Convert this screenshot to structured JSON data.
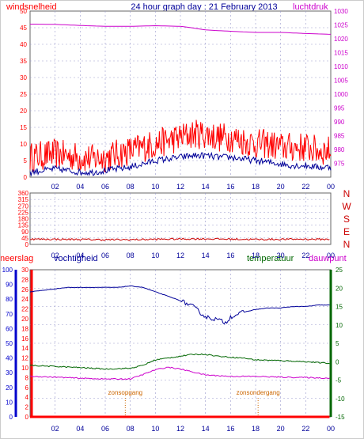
{
  "title": "24 hour graph day : 21 February 2013",
  "colors": {
    "wind": "#ff0000",
    "gust": "#ff0000",
    "avg_wind": "#000099",
    "pressure": "#cc00cc",
    "direction": "#cc0000",
    "rain": "#ff0000",
    "humidity": "#000099",
    "temperature": "#006600",
    "dewpoint": "#cc00cc",
    "sun": "#cc6600",
    "grid": "#9999cc",
    "frame": "#666666"
  },
  "chart_data": [
    {
      "type": "line",
      "name": "wind-pressure",
      "labels": {
        "left": "windsnelheid",
        "right": "luchtdruk"
      },
      "x_ticks": [
        "02",
        "04",
        "06",
        "08",
        "10",
        "12",
        "14",
        "16",
        "18",
        "20",
        "22",
        "00"
      ],
      "y_left": {
        "min": 0,
        "max": 50,
        "ticks": [
          0,
          5,
          10,
          15,
          20,
          25,
          30,
          35,
          40,
          45,
          50
        ]
      },
      "y_right": {
        "min": 970,
        "max": 1030,
        "ticks": [
          975,
          980,
          985,
          990,
          995,
          1000,
          1005,
          1010,
          1015,
          1020,
          1025,
          1030
        ]
      },
      "series": [
        {
          "key": "gust",
          "axis": "left",
          "hours": [
            0,
            1,
            2,
            3,
            4,
            5,
            6,
            7,
            8,
            9,
            10,
            11,
            12,
            13,
            14,
            15,
            16,
            17,
            18,
            19,
            20,
            21,
            22,
            23,
            24
          ],
          "values": [
            6,
            6.5,
            7,
            6.5,
            6,
            5.5,
            6,
            7,
            8,
            9,
            10,
            11,
            12,
            13,
            13,
            12,
            12,
            11,
            10,
            10,
            9,
            9,
            9,
            8,
            8
          ],
          "range": 3.5
        },
        {
          "key": "avg_wind",
          "axis": "left",
          "hours": [
            0,
            1,
            2,
            3,
            4,
            5,
            6,
            7,
            8,
            9,
            10,
            11,
            12,
            13,
            14,
            15,
            16,
            17,
            18,
            19,
            20,
            21,
            22,
            23,
            24
          ],
          "values": [
            1.5,
            2,
            2.5,
            2,
            1.5,
            1.5,
            2,
            2.5,
            3,
            4,
            5,
            5.5,
            6,
            6.5,
            6.5,
            6,
            6,
            5.5,
            5,
            4.5,
            4,
            3.5,
            3.5,
            3,
            3
          ],
          "range": 1
        },
        {
          "key": "pressure",
          "axis": "right",
          "hours": [
            0,
            2,
            4,
            6,
            8,
            10,
            12,
            13,
            14,
            16,
            18,
            20,
            22,
            24
          ],
          "values": [
            1025.3,
            1025.2,
            1024.8,
            1024.5,
            1024.5,
            1024.7,
            1024.5,
            1023.9,
            1023.2,
            1022.7,
            1022.3,
            1022.3,
            1021.9,
            1021.6
          ]
        }
      ]
    },
    {
      "type": "line",
      "name": "wind-direction",
      "x_ticks": [
        "02",
        "04",
        "06",
        "08",
        "10",
        "12",
        "14",
        "16",
        "18",
        "20",
        "22",
        "00"
      ],
      "y_left": {
        "min": 0,
        "max": 360,
        "ticks": [
          0,
          45,
          90,
          135,
          180,
          225,
          270,
          315,
          360
        ]
      },
      "compass": [
        "N",
        "W",
        "S",
        "E",
        "N"
      ],
      "series": [
        {
          "key": "direction",
          "hours": [
            0,
            2,
            4,
            6,
            8,
            10,
            12,
            14,
            16,
            18,
            20,
            22,
            24
          ],
          "values": [
            37,
            36,
            35,
            33,
            33,
            36,
            38,
            39,
            37,
            35,
            36,
            37,
            35
          ],
          "range": 6
        }
      ]
    },
    {
      "type": "line",
      "name": "rain-humidity-temperature",
      "labels": {
        "rain": "neerslag",
        "humidity": "vochtigheid",
        "temperature": "temperatuur",
        "dewpoint": "dauwpunt"
      },
      "x_ticks": [
        "02",
        "04",
        "06",
        "08",
        "10",
        "12",
        "14",
        "16",
        "18",
        "20",
        "22",
        "00"
      ],
      "y_rain": {
        "min": 0,
        "max": 30,
        "ticks": [
          0,
          2,
          4,
          6,
          8,
          10,
          12,
          14,
          16,
          18,
          20,
          22,
          24,
          26,
          28,
          30
        ]
      },
      "y_humidity": {
        "min": 0,
        "max": 100,
        "ticks": [
          0,
          10,
          20,
          30,
          40,
          50,
          60,
          70,
          80,
          90,
          100
        ]
      },
      "y_temperature": {
        "min": -15,
        "max": 25,
        "ticks": [
          -15,
          -10,
          -5,
          0,
          5,
          10,
          15,
          20,
          25
        ]
      },
      "events": [
        {
          "label": "zonsopgang",
          "hour": 7.6
        },
        {
          "label": "zonsondergang",
          "hour": 18.2
        }
      ],
      "series": [
        {
          "key": "rain",
          "axis": "rain",
          "hours": [
            0,
            24
          ],
          "values": [
            0,
            0
          ]
        },
        {
          "key": "humidity",
          "axis": "humidity",
          "hours": [
            0,
            1,
            2,
            3,
            4,
            5,
            6,
            7,
            8,
            9,
            10,
            11,
            12,
            13,
            14,
            15,
            15.6,
            16,
            17,
            18,
            19,
            20,
            21,
            22,
            23,
            24
          ],
          "values": [
            85,
            86,
            87,
            88,
            88,
            88,
            88,
            88,
            89,
            88,
            85,
            82,
            79,
            75,
            68,
            66,
            64,
            68,
            71,
            73,
            74,
            74,
            75,
            75,
            76,
            76
          ]
        },
        {
          "key": "temperature",
          "axis": "temperature",
          "hours": [
            0,
            2,
            4,
            6,
            8,
            9,
            10,
            11,
            12,
            13,
            14,
            15,
            16,
            17,
            18,
            20,
            22,
            24
          ],
          "values": [
            -1,
            -1.3,
            -1.6,
            -2,
            -1.8,
            -1,
            0.5,
            1,
            1.5,
            2,
            2,
            1.5,
            1.2,
            1,
            0.5,
            0.3,
            0,
            -0.5
          ]
        },
        {
          "key": "dewpoint",
          "axis": "temperature",
          "hours": [
            0,
            2,
            4,
            6,
            8,
            9,
            10,
            11,
            12,
            13,
            14,
            15,
            16,
            17,
            18,
            20,
            22,
            24
          ],
          "values": [
            -4,
            -4.2,
            -4.5,
            -4.7,
            -4.7,
            -3.5,
            -2.2,
            -1.5,
            -2,
            -2.8,
            -3.6,
            -3.8,
            -4,
            -4,
            -4,
            -4.2,
            -4.3,
            -4.5
          ]
        }
      ]
    }
  ]
}
